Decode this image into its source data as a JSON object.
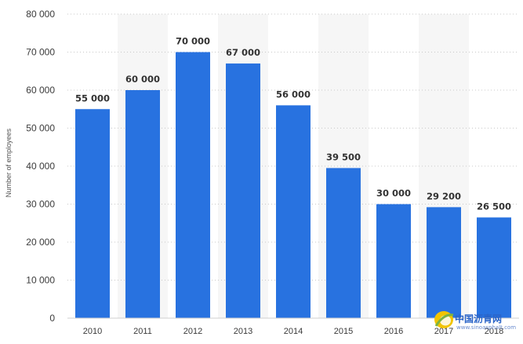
{
  "chart_data": {
    "type": "bar",
    "title": "",
    "xlabel": "",
    "ylabel": "Number of employees",
    "ylim": [
      0,
      80000
    ],
    "yticks": [
      0,
      10000,
      20000,
      30000,
      40000,
      50000,
      60000,
      70000,
      80000
    ],
    "ytick_labels": [
      "0",
      "10 000",
      "20 000",
      "30 000",
      "40 000",
      "50 000",
      "60 000",
      "70 000",
      "80 000"
    ],
    "categories": [
      "2010",
      "2011",
      "2012",
      "2013",
      "2014",
      "2015",
      "2016",
      "2017",
      "2018"
    ],
    "values": [
      55000,
      60000,
      70000,
      67000,
      56000,
      39500,
      30000,
      29200,
      26500
    ],
    "data_labels": [
      "55 000",
      "60 000",
      "70 000",
      "67 000",
      "56 000",
      "39 500",
      "30 000",
      "29 200",
      "26 500"
    ],
    "bar_color": "#2872e0",
    "grid": true
  },
  "watermark": {
    "name": "中国沥青网",
    "url": "www.sinoasphalt.com"
  }
}
